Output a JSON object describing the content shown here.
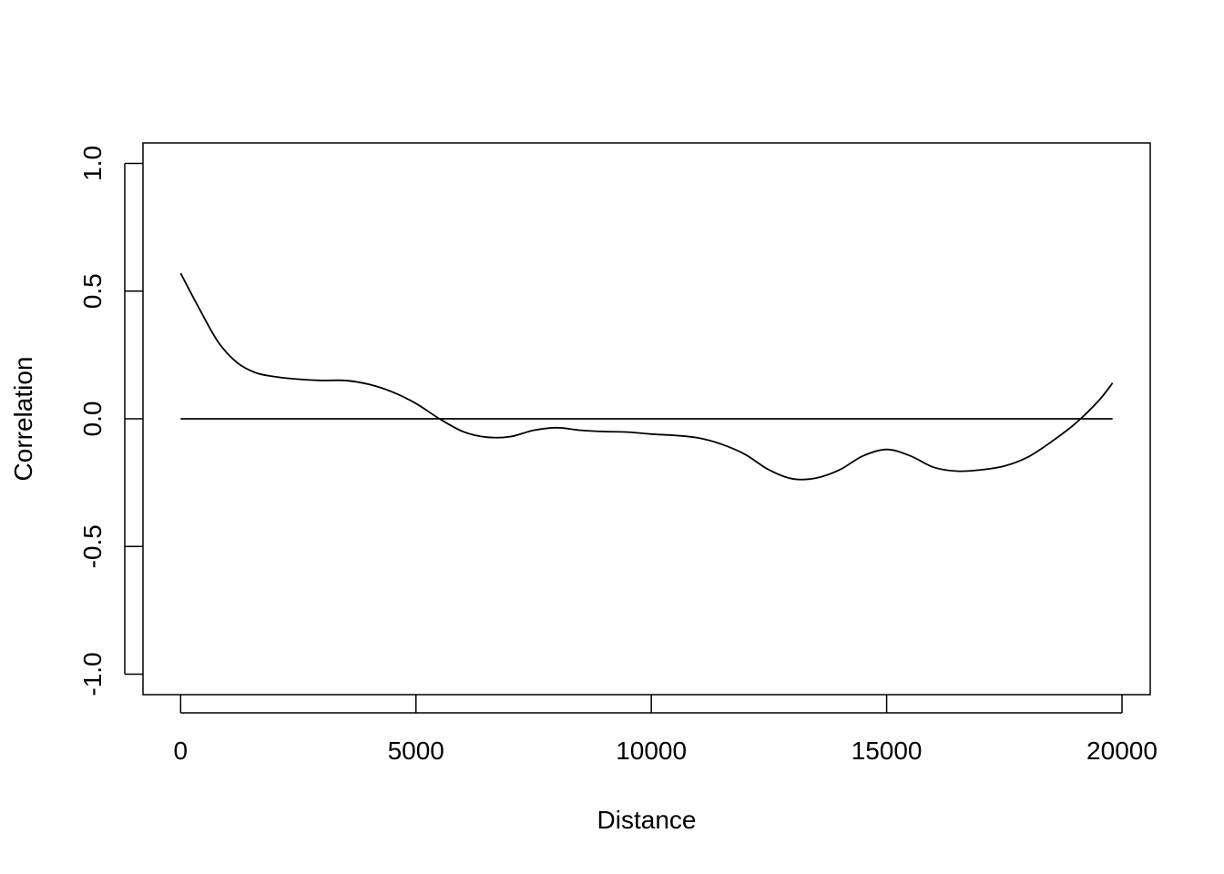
{
  "chart_data": {
    "type": "line",
    "title": "",
    "xlabel": "Distance",
    "ylabel": "Correlation",
    "xlim": [
      -800,
      20600
    ],
    "ylim": [
      -1.08,
      1.08
    ],
    "xticks": [
      0,
      5000,
      10000,
      15000,
      20000
    ],
    "xtick_labels": [
      "0",
      "5000",
      "10000",
      "15000",
      "20000"
    ],
    "yticks": [
      -1.0,
      -0.5,
      0.0,
      0.5,
      1.0
    ],
    "ytick_labels": [
      "-1.0",
      "-0.5",
      "0.0",
      "0.5",
      "1.0"
    ],
    "grid": false,
    "legend": "none",
    "line_color": "#000000",
    "series": [
      {
        "x": [
          0,
          400,
          800,
          1200,
          1600,
          2000,
          2500,
          3000,
          3500,
          4000,
          4500,
          5000,
          5500,
          6000,
          6500,
          7000,
          7500,
          8000,
          8500,
          9000,
          9500,
          10000,
          10500,
          11000,
          11500,
          12000,
          12500,
          13000,
          13500,
          14000,
          14500,
          15000,
          15500,
          16000,
          16500,
          17000,
          17500,
          18000,
          18500,
          19000,
          19500,
          19800
        ],
        "values": [
          0.57,
          0.43,
          0.3,
          0.22,
          0.18,
          0.165,
          0.155,
          0.15,
          0.15,
          0.135,
          0.105,
          0.06,
          0.0,
          -0.05,
          -0.072,
          -0.07,
          -0.045,
          -0.035,
          -0.045,
          -0.05,
          -0.052,
          -0.06,
          -0.065,
          -0.075,
          -0.1,
          -0.14,
          -0.2,
          -0.235,
          -0.232,
          -0.2,
          -0.145,
          -0.12,
          -0.145,
          -0.19,
          -0.205,
          -0.2,
          -0.185,
          -0.15,
          -0.09,
          -0.02,
          0.07,
          0.14
        ]
      },
      {
        "x": [
          0,
          19800
        ],
        "values": [
          0,
          0
        ]
      }
    ]
  }
}
